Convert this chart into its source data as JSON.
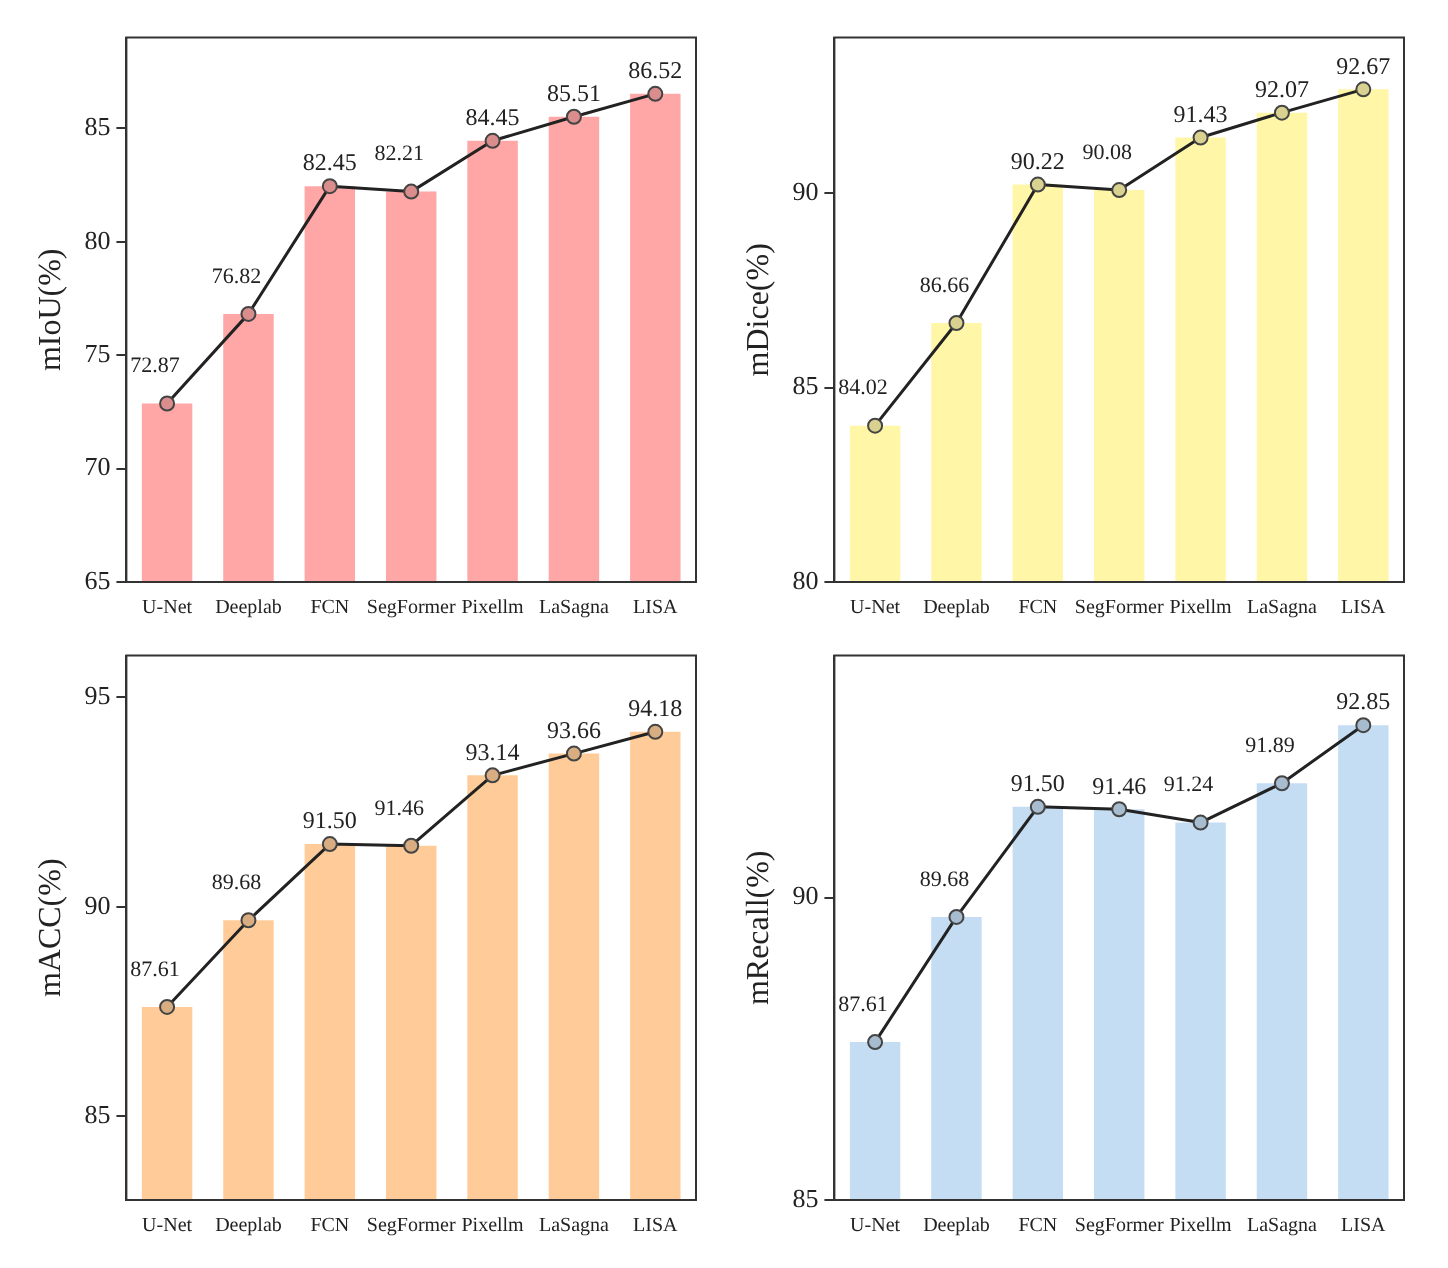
{
  "chart_data": [
    {
      "type": "bar",
      "ylabel": "mIoU(%)",
      "categories": [
        "U-Net",
        "Deeplab",
        "FCN",
        "SegFormer",
        "Pixellm",
        "LaSagna",
        "LISA"
      ],
      "ylim": [
        65,
        89
      ],
      "yticks": [
        65,
        70,
        75,
        80,
        85
      ],
      "grid": false,
      "legend": false,
      "marker": "circle",
      "series": [
        {
          "color": "#ffa6a6",
          "values": [
            72.87,
            76.82,
            82.45,
            82.21,
            84.45,
            85.51,
            86.52
          ]
        },
        {
          "type": "line",
          "color": "#222222",
          "values": [
            72.87,
            76.82,
            82.45,
            82.21,
            84.45,
            85.51,
            86.52
          ],
          "value_labels": [
            "72.87",
            "76.82",
            "82.45",
            "82.21",
            "84.45",
            "85.51",
            "86.52"
          ]
        }
      ]
    },
    {
      "type": "bar",
      "ylabel": "mDice(%)",
      "categories": [
        "U-Net",
        "Deeplab",
        "FCN",
        "SegFormer",
        "Pixellm",
        "LaSagna",
        "LISA"
      ],
      "ylim": [
        80,
        94
      ],
      "yticks": [
        80,
        85,
        90
      ],
      "grid": false,
      "legend": false,
      "marker": "circle",
      "series": [
        {
          "color": "#fff6a8",
          "values": [
            84.02,
            86.66,
            90.22,
            90.08,
            91.43,
            92.07,
            92.67
          ]
        },
        {
          "type": "line",
          "color": "#222222",
          "values": [
            84.02,
            86.66,
            90.22,
            90.08,
            91.43,
            92.07,
            92.67
          ],
          "value_labels": [
            "84.02",
            "86.66",
            "90.22",
            "90.08",
            "91.43",
            "92.07",
            "92.67"
          ]
        }
      ]
    },
    {
      "type": "bar",
      "ylabel": "mACC(%)",
      "categories": [
        "U-Net",
        "Deeplab",
        "FCN",
        "SegFormer",
        "Pixellm",
        "LaSagna",
        "LISA"
      ],
      "ylim": [
        83,
        96
      ],
      "yticks": [
        85,
        90,
        95
      ],
      "grid": false,
      "legend": false,
      "marker": "circle",
      "series": [
        {
          "color": "#ffcc99",
          "values": [
            87.61,
            89.68,
            91.5,
            91.46,
            93.14,
            93.66,
            94.18
          ]
        },
        {
          "type": "line",
          "color": "#222222",
          "values": [
            87.61,
            89.68,
            91.5,
            91.46,
            93.14,
            93.66,
            94.18
          ],
          "value_labels": [
            "87.61",
            "89.68",
            "91.50",
            "91.46",
            "93.14",
            "93.66",
            "94.18"
          ]
        }
      ]
    },
    {
      "type": "bar",
      "ylabel": "mRecall(%)",
      "categories": [
        "U-Net",
        "Deeplab",
        "FCN",
        "SegFormer",
        "Pixellm",
        "LaSagna",
        "LISA"
      ],
      "ylim": [
        85,
        94
      ],
      "yticks": [
        85,
        90
      ],
      "grid": false,
      "legend": false,
      "marker": "circle",
      "series": [
        {
          "color": "#c5ddf3",
          "values": [
            87.61,
            89.68,
            91.5,
            91.46,
            91.24,
            91.89,
            92.85
          ]
        },
        {
          "type": "line",
          "color": "#222222",
          "values": [
            87.61,
            89.68,
            91.5,
            91.46,
            91.24,
            91.89,
            92.85
          ],
          "value_labels": [
            "87.61",
            "89.68",
            "91.50",
            "91.46",
            "91.24",
            "91.89",
            "92.85"
          ]
        }
      ]
    }
  ]
}
